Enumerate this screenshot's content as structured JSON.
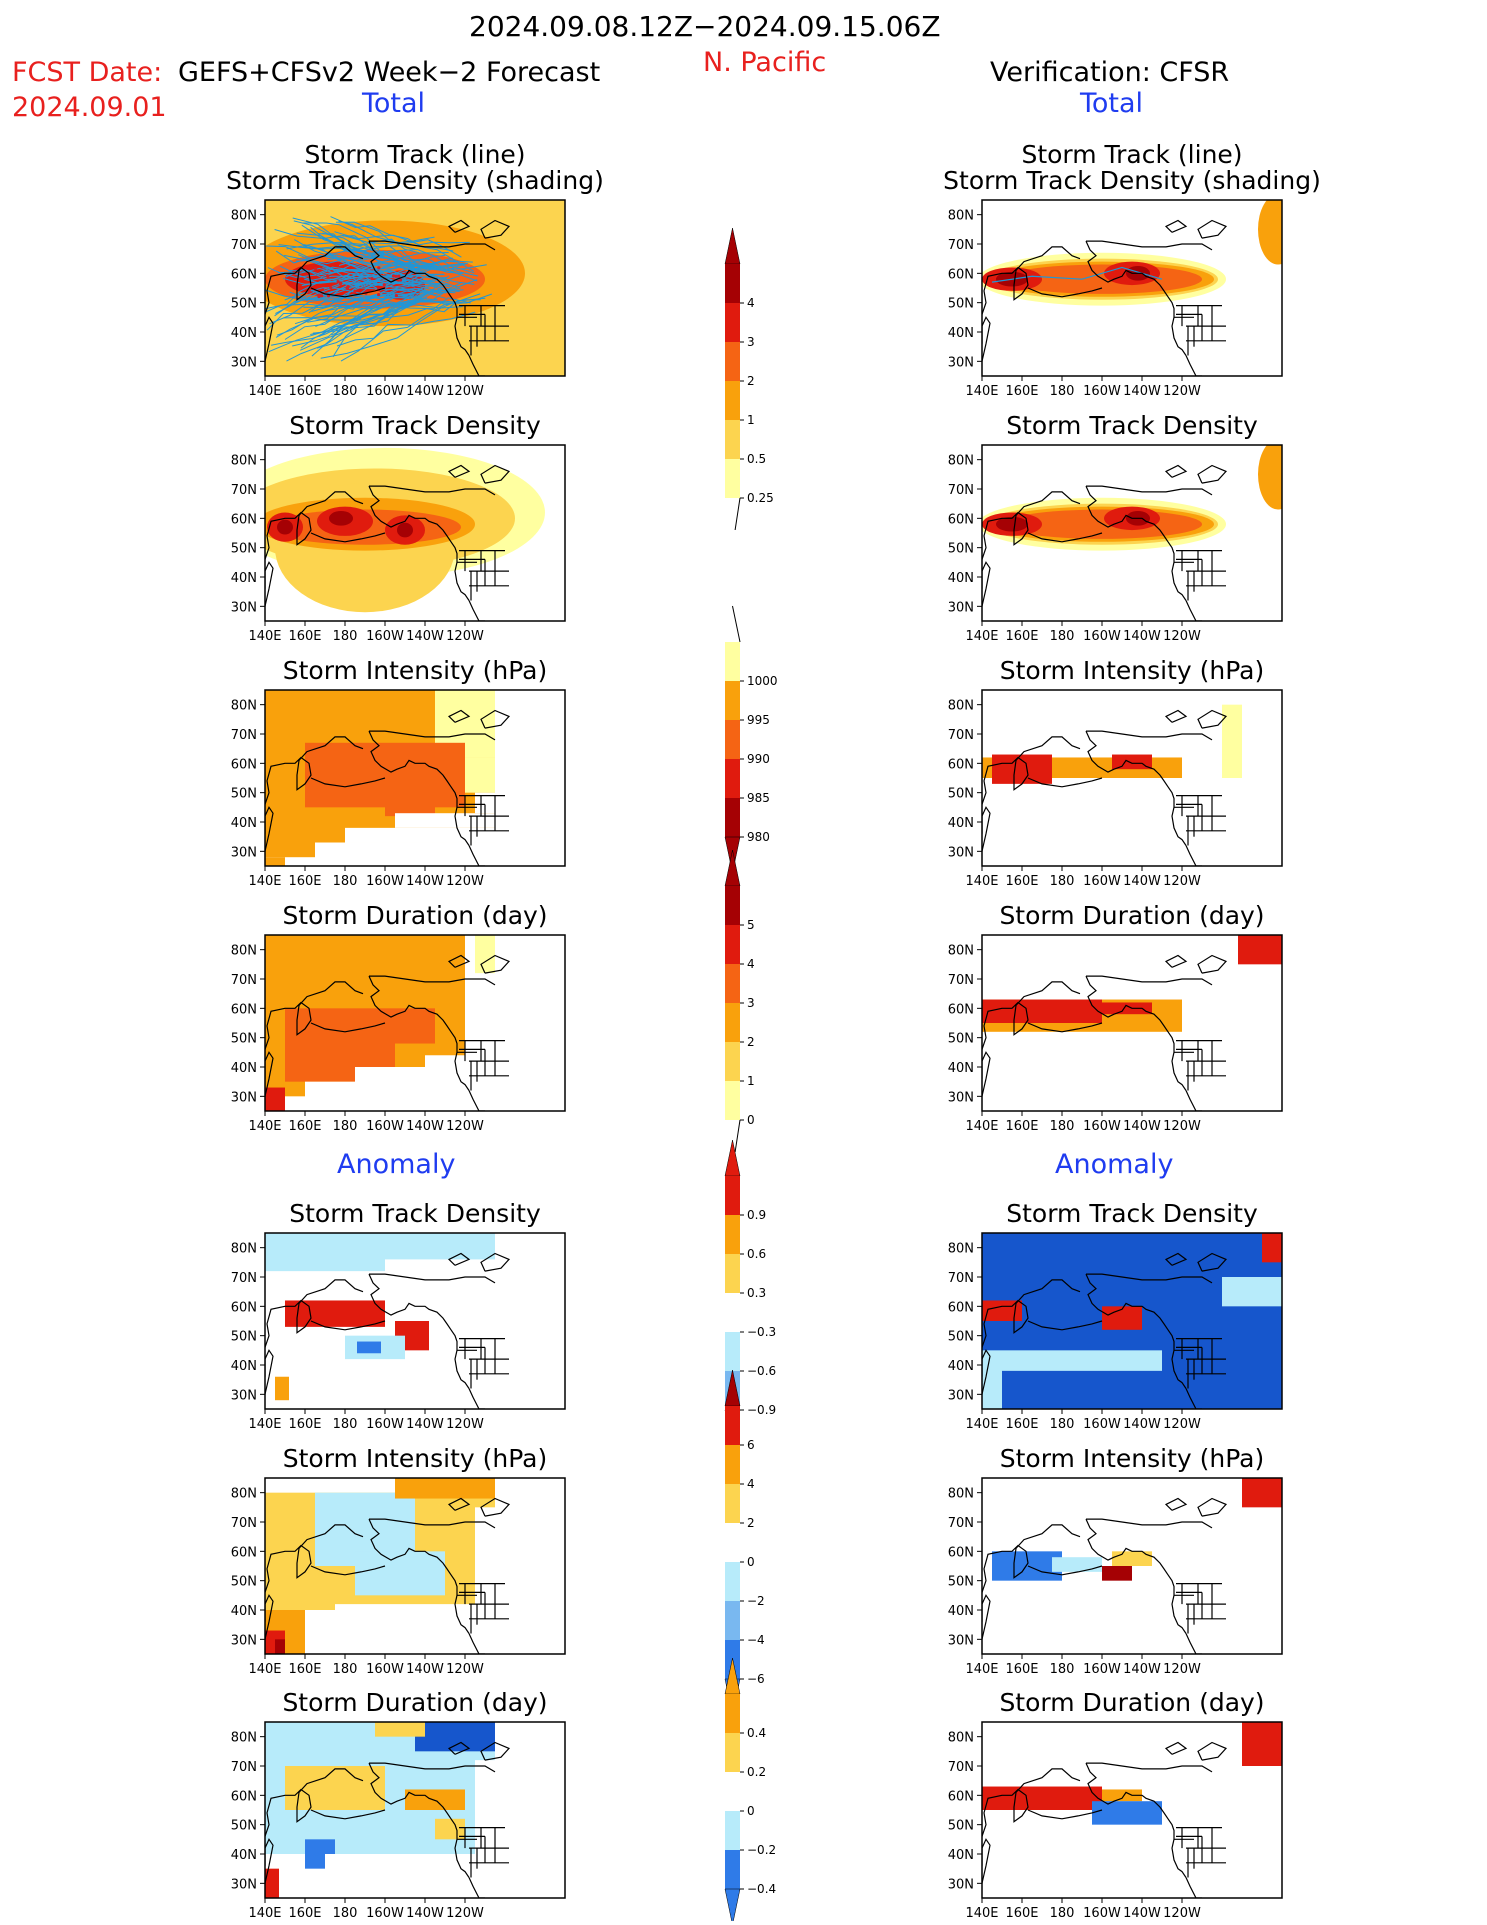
{
  "header": {
    "period": "2024.09.08.12Z−2024.09.15.06Z",
    "region": "N. Pacific",
    "fcst_label": "FCST Date:",
    "fcst_model": "GEFS+CFSv2 Week−2 Forecast",
    "fcst_date": "2024.09.01",
    "verification": "Verification: CFSR",
    "total_left": "Total",
    "total_right": "Total",
    "anomaly_left": "Anomaly",
    "anomaly_right": "Anomaly"
  },
  "panel_titles": {
    "track_line": "Storm Track (line)",
    "track_density_shading": "Storm Track Density (shading)",
    "track_density": "Storm Track Density",
    "intensity": "Storm Intensity (hPa)",
    "duration": "Storm Duration (day)"
  },
  "axes": {
    "lat_ticks": [
      "80N",
      "70N",
      "60N",
      "50N",
      "40N",
      "30N"
    ],
    "lon_ticks": [
      "140E",
      "160E",
      "180",
      "160W",
      "140W",
      "120W"
    ]
  },
  "colors": {
    "lightyellow": "#ffffa0",
    "yellow": "#fcd44f",
    "orange": "#f9a10c",
    "darkorange": "#f56414",
    "red": "#e01b0e",
    "darkred": "#a50104",
    "lightblue": "#b7ebfa",
    "midblue": "#79b8f0",
    "blue": "#2f7be8",
    "darkblue": "#1656cc",
    "track": "#2196d6"
  },
  "colorbars": [
    {
      "id": "density_total",
      "labels": [
        "4",
        "3",
        "2",
        "1",
        "0.5",
        "0.25"
      ]
    },
    {
      "id": "intensity_total",
      "labels": [
        "1000",
        "995",
        "990",
        "985",
        "980"
      ]
    },
    {
      "id": "duration_total",
      "labels": [
        "5",
        "4",
        "3",
        "2",
        "1",
        "0"
      ]
    },
    {
      "id": "density_anom",
      "labels": [
        "0.9",
        "0.6",
        "0.3",
        "−0.3",
        "−0.6",
        "−0.9"
      ]
    },
    {
      "id": "intensity_anom",
      "labels": [
        "6",
        "4",
        "2",
        "0",
        "−2",
        "−4",
        "−6"
      ]
    },
    {
      "id": "duration_anom",
      "labels": [
        "0.4",
        "0.2",
        "0",
        "−0.2",
        "−0.4"
      ]
    }
  ],
  "chart_data": [
    {
      "type": "heatmap",
      "title": "Storm Track (line) / Storm Track Density (shading)",
      "side": "GEFS+CFSv2",
      "section": "Total",
      "legend": [
        "0.25",
        "0.5",
        "1",
        "2",
        "3",
        "4"
      ],
      "pattern": "density maximum >4 along 55–60N from 145E to 140W; many track lines 30–80N"
    },
    {
      "type": "heatmap",
      "title": "Storm Track Density",
      "side": "GEFS+CFSv2",
      "section": "Total",
      "legend": [
        "0.25",
        "0.5",
        "1",
        "2",
        "3",
        "4"
      ],
      "pattern": "max >4 near 58N 150E, 60N 180, 55N 150W"
    },
    {
      "type": "heatmap",
      "title": "Storm Intensity (hPa)",
      "side": "GEFS+CFSv2",
      "section": "Total",
      "legend": [
        "980",
        "985",
        "990",
        "995",
        "1000"
      ],
      "pattern": "985–990 over 45–65N, 995 elsewhere"
    },
    {
      "type": "heatmap",
      "title": "Storm Duration (day)",
      "side": "GEFS+CFSv2",
      "section": "Total",
      "legend": [
        "0",
        "1",
        "2",
        "3",
        "4",
        "5"
      ],
      "pattern": "3–4 days over 35–70N"
    },
    {
      "type": "heatmap",
      "title": "Storm Track Density",
      "side": "GEFS+CFSv2",
      "section": "Anomaly",
      "legend": [
        "−0.9",
        "−0.6",
        "−0.3",
        "0.3",
        "0.6",
        "0.9"
      ],
      "pattern": "positive 55–60N 140E–170W and 45–55N 140W; negative 45N 170W–155W"
    },
    {
      "type": "heatmap",
      "title": "Storm Intensity (hPa)",
      "side": "GEFS+CFSv2",
      "section": "Anomaly",
      "legend": [
        "−6",
        "−4",
        "−2",
        "0",
        "2",
        "4",
        "6"
      ],
      "pattern": "weakly negative north-central, positive +4 to +6 near 30N 145E"
    },
    {
      "type": "heatmap",
      "title": "Storm Duration (day)",
      "side": "GEFS+CFSv2",
      "section": "Anomaly",
      "legend": [
        "−0.4",
        "−0.2",
        "0",
        "0.2",
        "0.4"
      ],
      "pattern": "negative in far north-east, mixed elsewhere"
    },
    {
      "type": "heatmap",
      "title": "Storm Track (line) / Storm Track Density (shading)",
      "side": "CFSR",
      "section": "Total",
      "legend": [
        "0.25",
        "0.5",
        "1",
        "2",
        "3",
        "4"
      ],
      "pattern": "narrow band 55–60N with maxima near 150E and 150W"
    },
    {
      "type": "heatmap",
      "title": "Storm Track Density",
      "side": "CFSR",
      "section": "Total",
      "legend": [
        "0.25",
        "0.5",
        "1",
        "2",
        "3",
        "4"
      ],
      "pattern": "narrow band 55–60N"
    },
    {
      "type": "heatmap",
      "title": "Storm Intensity (hPa)",
      "side": "CFSR",
      "section": "Total",
      "legend": [
        "980",
        "985",
        "990",
        "995",
        "1000"
      ],
      "pattern": "980–990 along 55–62N"
    },
    {
      "type": "heatmap",
      "title": "Storm Duration (day)",
      "side": "CFSR",
      "section": "Total",
      "legend": [
        "0",
        "1",
        "2",
        "3",
        "4",
        "5"
      ],
      "pattern": "4–5 days along 55–62N"
    },
    {
      "type": "heatmap",
      "title": "Storm Track Density",
      "side": "CFSR",
      "section": "Anomaly",
      "legend": [
        "−0.9",
        "−0.6",
        "−0.3",
        "0.3",
        "0.6",
        "0.9"
      ],
      "pattern": "strongly negative north and south, positive near 58N 150E and 55N 155W"
    },
    {
      "type": "heatmap",
      "title": "Storm Intensity (hPa)",
      "side": "CFSR",
      "section": "Anomaly",
      "legend": [
        "−6",
        "−4",
        "−2",
        "0",
        "2",
        "4",
        "6"
      ],
      "pattern": "negative 52–60N 140E–175E, positive near 52N 165W"
    },
    {
      "type": "heatmap",
      "title": "Storm Duration (day)",
      "side": "CFSR",
      "section": "Anomaly",
      "legend": [
        "−0.4",
        "−0.2",
        "0",
        "0.2",
        "0.4"
      ],
      "pattern": "positive 55–62N west, negative near 55N 150W"
    }
  ]
}
